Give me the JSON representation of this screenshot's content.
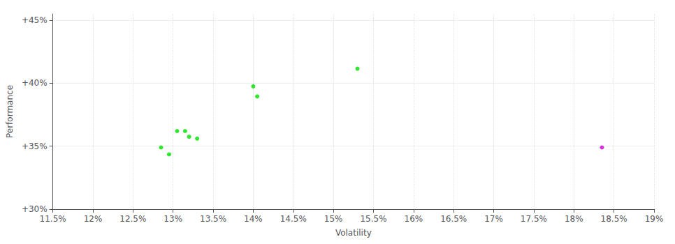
{
  "chart_data": {
    "type": "scatter",
    "xlabel": "Volatility",
    "ylabel": "Performance",
    "xlim": [
      0.115,
      0.19
    ],
    "ylim": [
      0.3,
      0.455
    ],
    "xticks": [
      {
        "value": 0.115,
        "label": "11.5%"
      },
      {
        "value": 0.12,
        "label": "12%"
      },
      {
        "value": 0.125,
        "label": "12.5%"
      },
      {
        "value": 0.13,
        "label": "13%"
      },
      {
        "value": 0.135,
        "label": "13.5%"
      },
      {
        "value": 0.14,
        "label": "14%"
      },
      {
        "value": 0.145,
        "label": "14.5%"
      },
      {
        "value": 0.15,
        "label": "15%"
      },
      {
        "value": 0.155,
        "label": "15.5%"
      },
      {
        "value": 0.16,
        "label": "16%"
      },
      {
        "value": 0.165,
        "label": "16.5%"
      },
      {
        "value": 0.17,
        "label": "17%"
      },
      {
        "value": 0.175,
        "label": "17.5%"
      },
      {
        "value": 0.18,
        "label": "18%"
      },
      {
        "value": 0.185,
        "label": "18.5%"
      },
      {
        "value": 0.19,
        "label": "19%"
      }
    ],
    "yticks": [
      {
        "value": 0.3,
        "label": "+30%"
      },
      {
        "value": 0.35,
        "label": "+35%"
      },
      {
        "value": 0.4,
        "label": "+40%"
      },
      {
        "value": 0.45,
        "label": "+45%"
      }
    ],
    "grid": true,
    "series": [
      {
        "color": "#00dd00",
        "values": [
          [
            0.1285,
            0.349
          ],
          [
            0.1295,
            0.3435
          ],
          [
            0.1305,
            0.362
          ],
          [
            0.1315,
            0.362
          ],
          [
            0.132,
            0.3575
          ],
          [
            0.133,
            0.356
          ],
          [
            0.14,
            0.3975
          ],
          [
            0.1405,
            0.3895
          ],
          [
            0.153,
            0.4115
          ]
        ]
      },
      {
        "color": "#cc00cc",
        "values": [
          [
            0.1835,
            0.349
          ]
        ]
      }
    ]
  }
}
